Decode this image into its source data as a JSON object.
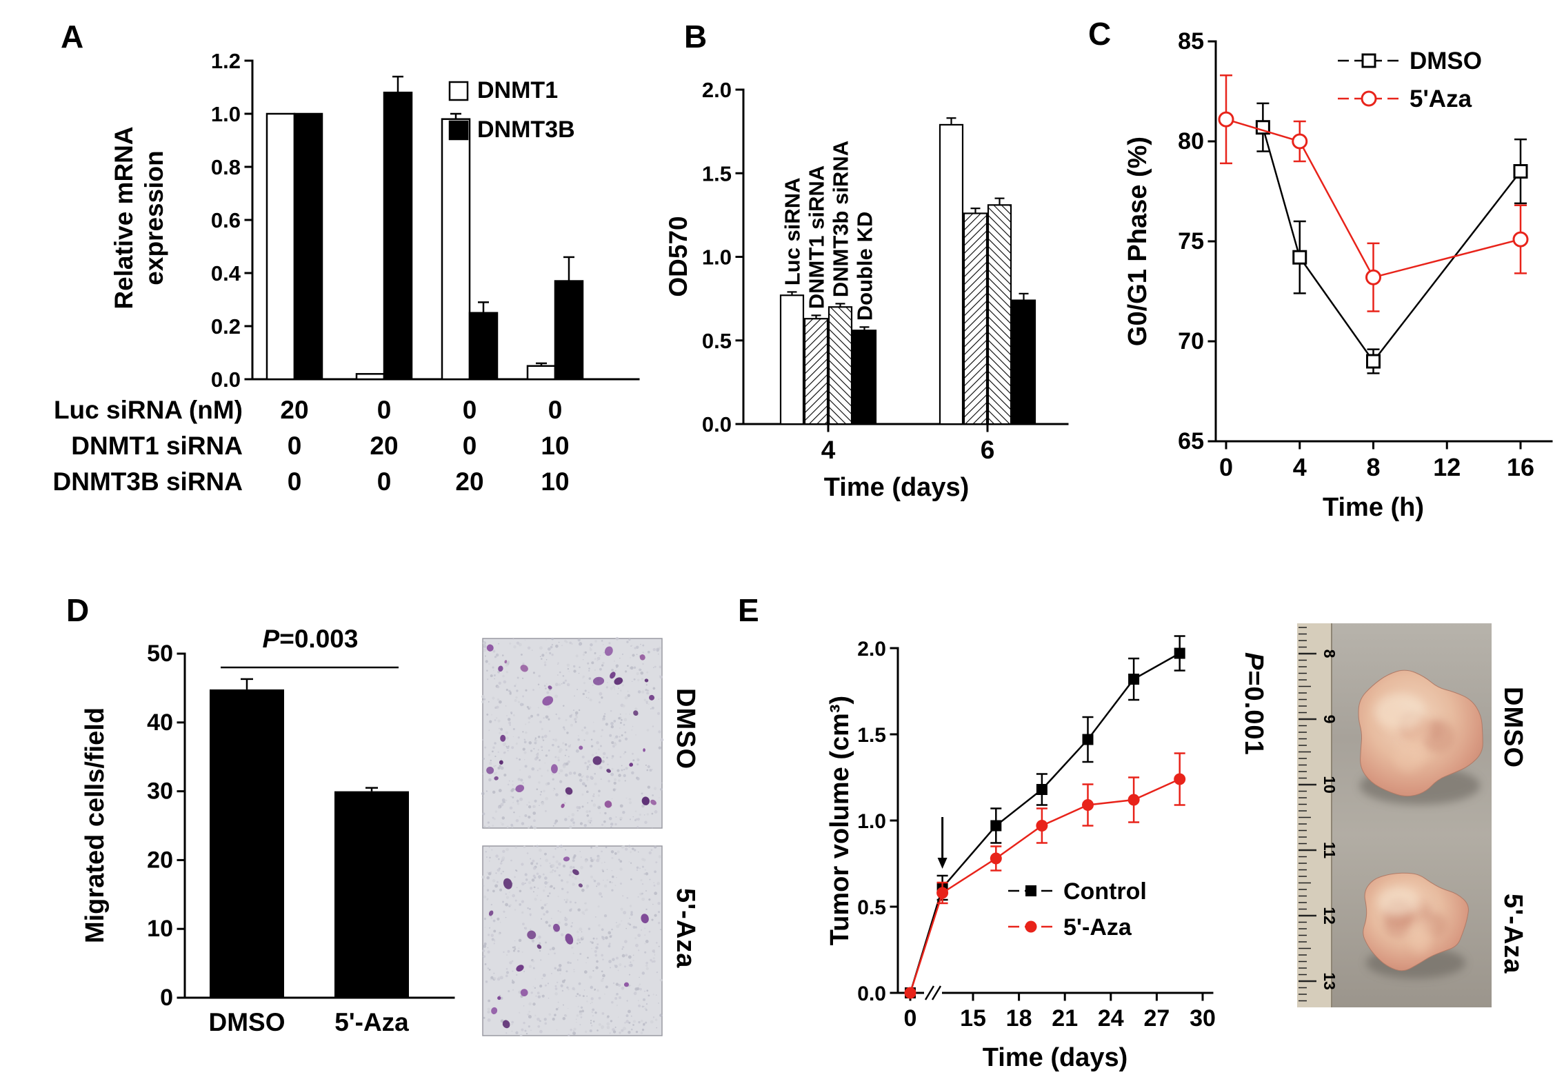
{
  "panels": {
    "A": {
      "label": "A",
      "chart_data": {
        "type": "bar",
        "ylabel_lines": [
          "Relative mRNA",
          "expression"
        ],
        "ylim": [
          0,
          1.2
        ],
        "yticks": [
          0,
          0.2,
          0.4,
          0.6,
          0.8,
          1.0,
          1.2
        ],
        "series": [
          {
            "name": "DNMT1",
            "fill": "white",
            "values": [
              1.0,
              0.02,
              0.98,
              0.05
            ],
            "errors": [
              0,
              0,
              0.02,
              0.01
            ]
          },
          {
            "name": "DNMT3B",
            "fill": "black",
            "values": [
              1.0,
              1.08,
              0.25,
              0.37
            ],
            "errors": [
              0,
              0.06,
              0.04,
              0.09
            ]
          }
        ],
        "x_table": [
          {
            "label": "Luc siRNA (nM)",
            "values": [
              "20",
              "0",
              "0",
              "0"
            ]
          },
          {
            "label": "DNMT1 siRNA",
            "values": [
              "0",
              "20",
              "0",
              "10"
            ]
          },
          {
            "label": "DNMT3B siRNA",
            "values": [
              "0",
              "0",
              "20",
              "10"
            ]
          }
        ]
      }
    },
    "B": {
      "label": "B",
      "chart_data": {
        "type": "bar",
        "ylabel": "OD570",
        "xlabel": "Time (days)",
        "ylim": [
          0,
          2.0
        ],
        "yticks": [
          0,
          0.5,
          1.0,
          1.5,
          2.0
        ],
        "categories": [
          "4",
          "6"
        ],
        "series": [
          {
            "name": "Luc siRNA",
            "fill": "white",
            "values": [
              0.77,
              1.79
            ],
            "errors": [
              0.02,
              0.04
            ]
          },
          {
            "name": "DNMT1 siRNA",
            "fill": "hatch1",
            "values": [
              0.63,
              1.26
            ],
            "errors": [
              0.02,
              0.03
            ]
          },
          {
            "name": "DNMT3b siRNA",
            "fill": "hatch2",
            "values": [
              0.7,
              1.31
            ],
            "errors": [
              0.02,
              0.04
            ]
          },
          {
            "name": "Double KD",
            "fill": "black",
            "values": [
              0.56,
              0.74
            ],
            "errors": [
              0.02,
              0.04
            ]
          }
        ]
      }
    },
    "C": {
      "label": "C",
      "chart_data": {
        "type": "line",
        "ylabel": "G0/G1 Phase (%)",
        "xlabel": "Time (h)",
        "ylim": [
          65,
          85
        ],
        "yticks": [
          65,
          70,
          75,
          80,
          85
        ],
        "xlim": [
          0,
          16
        ],
        "xticks": [
          0,
          4,
          8,
          12,
          16
        ],
        "legend_position": "top-right",
        "series": [
          {
            "name": "DMSO",
            "color": "#000000",
            "marker": "open-square",
            "x": [
              2,
              4,
              8,
              16
            ],
            "y": [
              80.7,
              74.2,
              69.0,
              78.5
            ],
            "err": [
              1.2,
              1.8,
              0.6,
              1.6
            ]
          },
          {
            "name": "5'Aza",
            "color": "#e8231a",
            "marker": "open-circle",
            "x": [
              0,
              4,
              8,
              16
            ],
            "y": [
              81.1,
              80.0,
              73.2,
              75.1
            ],
            "err": [
              2.2,
              1.0,
              1.7,
              1.7
            ]
          }
        ]
      }
    },
    "D": {
      "label": "D",
      "p_stat": {
        "label": "P",
        "value": "=0.003"
      },
      "chart_data": {
        "type": "bar",
        "ylabel": "Migrated cells/field",
        "ylim": [
          0,
          50
        ],
        "yticks": [
          0,
          10,
          20,
          30,
          40,
          50
        ],
        "categories": [
          "DMSO",
          "5'-Aza"
        ],
        "series": [
          {
            "name": "Migrated cells",
            "fill": "black",
            "values": [
              44.8,
              30.0
            ],
            "errors": [
              1.5,
              0.5
            ]
          }
        ],
        "sig_line_y": 48
      },
      "images": [
        {
          "label": "DMSO"
        },
        {
          "label": "5'-Aza"
        }
      ]
    },
    "E": {
      "label": "E",
      "p_stat": {
        "label": "P",
        "value": "=0.001"
      },
      "chart_data": {
        "type": "line",
        "ylabel": "Tumor volume (cm³)",
        "xlabel": "Time (days)",
        "ylim": [
          0,
          2.0
        ],
        "yticks": [
          0,
          0.5,
          1.0,
          1.5,
          2.0
        ],
        "xticks": [
          0,
          15,
          18,
          21,
          24,
          27,
          30
        ],
        "axis_break_after": 0,
        "annotation_arrow_x": 13,
        "legend_position": "inside-lower-right",
        "series": [
          {
            "name": "Control",
            "color": "#000000",
            "marker": "filled-square",
            "x": [
              0,
              13,
              16.5,
              19.5,
              22.5,
              25.5,
              28.5
            ],
            "y": [
              0,
              0.61,
              0.97,
              1.18,
              1.47,
              1.82,
              1.97
            ],
            "err": [
              0,
              0.07,
              0.1,
              0.09,
              0.13,
              0.12,
              0.1
            ]
          },
          {
            "name": "5'-Aza",
            "color": "#e8231a",
            "marker": "filled-circle",
            "x": [
              0,
              13,
              16.5,
              19.5,
              22.5,
              25.5,
              28.5
            ],
            "y": [
              0,
              0.58,
              0.78,
              0.97,
              1.09,
              1.12,
              1.24
            ],
            "err": [
              0,
              0.06,
              0.07,
              0.1,
              0.12,
              0.13,
              0.15
            ]
          }
        ]
      },
      "photo": {
        "ruler_numbers": [
          "8",
          "9",
          "10",
          "11",
          "12",
          "13"
        ],
        "labels": [
          "DMSO",
          "5'-Aza"
        ]
      }
    }
  }
}
